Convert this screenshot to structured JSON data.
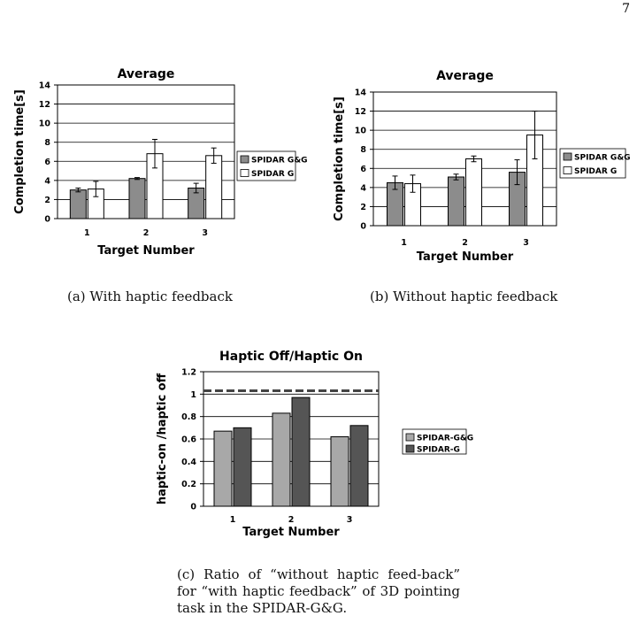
{
  "page_number": "7",
  "captions": {
    "a": "(a) With haptic feedback",
    "b": "(b) Without haptic feedback",
    "c": "(c) Ratio of “without haptic feed-back” for “with haptic feedback” of 3D pointing task in the SPIDAR-G&G."
  },
  "chart_data": [
    {
      "id": "a",
      "type": "bar",
      "title": "Average",
      "xlabel": "Target Number",
      "ylabel": "Completion time[s]",
      "categories": [
        "1",
        "2",
        "3"
      ],
      "ylim": [
        0,
        14
      ],
      "yticks": [
        "0",
        "2",
        "4",
        "6",
        "8",
        "10",
        "12",
        "14"
      ],
      "grid": true,
      "legend": "right",
      "series": [
        {
          "name": "SPIDAR G&G",
          "color": "#8c8c8c",
          "values": [
            3.0,
            4.2,
            3.2
          ],
          "errors": [
            0.2,
            0.1,
            0.5
          ]
        },
        {
          "name": "SPIDAR G",
          "color": "#ffffff",
          "values": [
            3.1,
            6.8,
            6.6
          ],
          "errors": [
            0.8,
            1.5,
            0.8
          ]
        }
      ]
    },
    {
      "id": "b",
      "type": "bar",
      "title": "Average",
      "xlabel": "Target Number",
      "ylabel": "Completion time[s]",
      "categories": [
        "1",
        "2",
        "3"
      ],
      "ylim": [
        0,
        14
      ],
      "yticks": [
        "0",
        "2",
        "4",
        "6",
        "8",
        "10",
        "12",
        "14"
      ],
      "grid": true,
      "legend": "right",
      "series": [
        {
          "name": "SPIDAR G&G",
          "color": "#8c8c8c",
          "values": [
            4.5,
            5.1,
            5.6
          ],
          "errors": [
            0.7,
            0.3,
            1.3
          ]
        },
        {
          "name": "SPIDAR G",
          "color": "#ffffff",
          "values": [
            4.4,
            7.0,
            9.5
          ],
          "errors": [
            0.9,
            0.3,
            2.5
          ]
        }
      ]
    },
    {
      "id": "c",
      "type": "bar",
      "title": "Haptic Off/Haptic On",
      "xlabel": "Target Number",
      "ylabel": "haptic-on /haptic off",
      "categories": [
        "1",
        "2",
        "3"
      ],
      "ylim": [
        0,
        1.2
      ],
      "yticks": [
        "0",
        "0.2",
        "0.4",
        "0.6",
        "0.8",
        "1",
        "1.2"
      ],
      "grid": true,
      "legend": "right",
      "reference_line": 1.03,
      "series": [
        {
          "name": "SPIDAR-G&G",
          "color": "#a8a8a8",
          "values": [
            0.67,
            0.83,
            0.62
          ]
        },
        {
          "name": "SPIDAR-G",
          "color": "#555555",
          "values": [
            0.7,
            0.97,
            0.72
          ]
        }
      ]
    }
  ]
}
